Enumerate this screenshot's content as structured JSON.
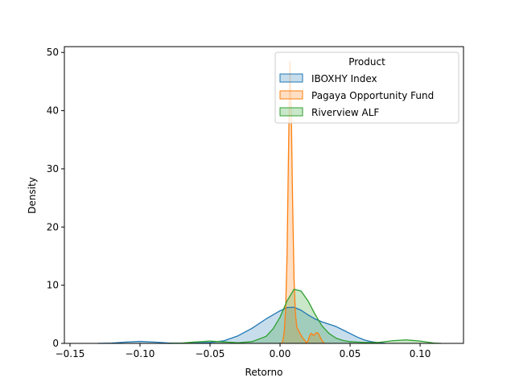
{
  "chart_data": {
    "type": "area",
    "title": "",
    "xlabel": "Retorno",
    "ylabel": "Density",
    "xlim": [
      -0.154,
      0.131
    ],
    "ylim": [
      0,
      51
    ],
    "xticks": [
      -0.15,
      -0.1,
      -0.05,
      0.0,
      0.05,
      0.1
    ],
    "xtick_labels": [
      "−0.15",
      "−0.10",
      "−0.05",
      "0.00",
      "0.05",
      "0.10"
    ],
    "yticks": [
      0,
      10,
      20,
      30,
      40,
      50
    ],
    "ytick_labels": [
      "0",
      "10",
      "20",
      "30",
      "40",
      "50"
    ],
    "grid": false,
    "legend": {
      "title": "Product",
      "placement": "top-right"
    },
    "series": [
      {
        "name": "IBOXHY Index",
        "color": "#1f77b4",
        "points": [
          [
            -0.13,
            0.0
          ],
          [
            -0.12,
            0.05
          ],
          [
            -0.11,
            0.22
          ],
          [
            -0.1,
            0.35
          ],
          [
            -0.09,
            0.22
          ],
          [
            -0.08,
            0.07
          ],
          [
            -0.07,
            0.03
          ],
          [
            -0.06,
            0.05
          ],
          [
            -0.05,
            0.15
          ],
          [
            -0.04,
            0.45
          ],
          [
            -0.03,
            1.3
          ],
          [
            -0.02,
            2.6
          ],
          [
            -0.01,
            4.2
          ],
          [
            0.0,
            5.6
          ],
          [
            0.005,
            6.15
          ],
          [
            0.01,
            6.2
          ],
          [
            0.015,
            5.7
          ],
          [
            0.02,
            4.9
          ],
          [
            0.025,
            4.2
          ],
          [
            0.03,
            3.7
          ],
          [
            0.035,
            3.3
          ],
          [
            0.04,
            2.9
          ],
          [
            0.045,
            2.3
          ],
          [
            0.05,
            1.7
          ],
          [
            0.055,
            1.1
          ],
          [
            0.06,
            0.6
          ],
          [
            0.065,
            0.3
          ],
          [
            0.07,
            0.12
          ],
          [
            0.075,
            0.02
          ]
        ]
      },
      {
        "name": "Pagaya Opportunity Fund",
        "color": "#ff7f0e",
        "points": [
          [
            0.001,
            0.0
          ],
          [
            0.002,
            0.4
          ],
          [
            0.003,
            2.0
          ],
          [
            0.004,
            6.0
          ],
          [
            0.005,
            15.0
          ],
          [
            0.006,
            32.0
          ],
          [
            0.007,
            48.5
          ],
          [
            0.008,
            40.0
          ],
          [
            0.009,
            24.0
          ],
          [
            0.01,
            11.0
          ],
          [
            0.011,
            5.0
          ],
          [
            0.012,
            2.8
          ],
          [
            0.014,
            1.8
          ],
          [
            0.016,
            1.0
          ],
          [
            0.018,
            0.4
          ],
          [
            0.019,
            0.1
          ],
          [
            0.02,
            0.4
          ],
          [
            0.021,
            1.2
          ],
          [
            0.022,
            1.7
          ],
          [
            0.023,
            1.6
          ],
          [
            0.024,
            1.35
          ],
          [
            0.025,
            1.6
          ],
          [
            0.026,
            1.85
          ],
          [
            0.027,
            1.8
          ],
          [
            0.028,
            1.4
          ],
          [
            0.029,
            0.9
          ],
          [
            0.03,
            0.45
          ],
          [
            0.031,
            0.15
          ],
          [
            0.032,
            0.0
          ]
        ]
      },
      {
        "name": "Riverview ALF",
        "color": "#2ca02c",
        "points": [
          [
            -0.08,
            0.0
          ],
          [
            -0.07,
            0.05
          ],
          [
            -0.06,
            0.25
          ],
          [
            -0.05,
            0.4
          ],
          [
            -0.04,
            0.25
          ],
          [
            -0.03,
            0.1
          ],
          [
            -0.02,
            0.3
          ],
          [
            -0.01,
            1.2
          ],
          [
            -0.005,
            2.5
          ],
          [
            0.0,
            4.5
          ],
          [
            0.005,
            7.3
          ],
          [
            0.01,
            9.3
          ],
          [
            0.015,
            9.0
          ],
          [
            0.02,
            7.3
          ],
          [
            0.025,
            5.0
          ],
          [
            0.03,
            3.0
          ],
          [
            0.035,
            1.7
          ],
          [
            0.04,
            0.9
          ],
          [
            0.045,
            0.5
          ],
          [
            0.05,
            0.3
          ],
          [
            0.06,
            0.15
          ],
          [
            0.07,
            0.15
          ],
          [
            0.08,
            0.45
          ],
          [
            0.09,
            0.6
          ],
          [
            0.1,
            0.4
          ],
          [
            0.11,
            0.05
          ],
          [
            0.115,
            0.0
          ]
        ]
      }
    ]
  }
}
